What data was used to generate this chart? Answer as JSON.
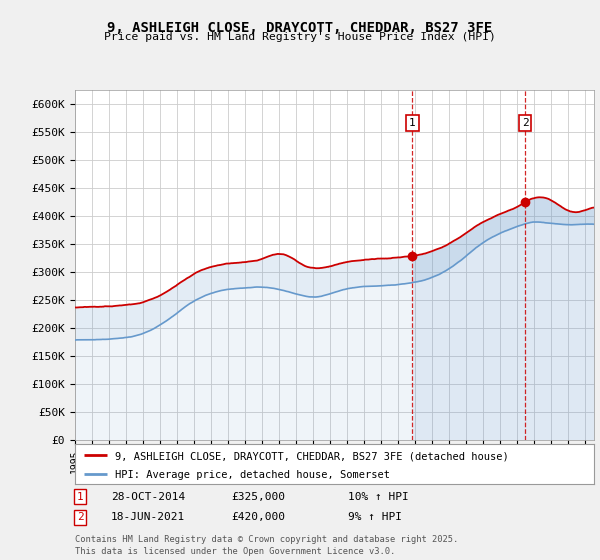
{
  "title": "9, ASHLEIGH CLOSE, DRAYCOTT, CHEDDAR, BS27 3FE",
  "subtitle": "Price paid vs. HM Land Registry's House Price Index (HPI)",
  "ylabel_ticks": [
    "£0",
    "£50K",
    "£100K",
    "£150K",
    "£200K",
    "£250K",
    "£300K",
    "£350K",
    "£400K",
    "£450K",
    "£500K",
    "£550K",
    "£600K"
  ],
  "ytick_values": [
    0,
    50000,
    100000,
    150000,
    200000,
    250000,
    300000,
    350000,
    400000,
    450000,
    500000,
    550000,
    600000
  ],
  "ylim": [
    0,
    625000
  ],
  "background_color": "#f0f0f0",
  "plot_bg_color": "#ffffff",
  "grid_color": "#cccccc",
  "red_line_color": "#cc0000",
  "blue_line_color": "#6699cc",
  "vline_color": "#cc0000",
  "marker1_year": 2014.83,
  "marker2_year": 2021.46,
  "sale1_price": 325000,
  "sale1_date": "28-OCT-2014",
  "sale1_hpi": "10% ↑ HPI",
  "sale2_price": 420000,
  "sale2_date": "18-JUN-2021",
  "sale2_hpi": "9% ↑ HPI",
  "legend_label1": "9, ASHLEIGH CLOSE, DRAYCOTT, CHEDDAR, BS27 3FE (detached house)",
  "legend_label2": "HPI: Average price, detached house, Somerset",
  "footnote": "Contains HM Land Registry data © Crown copyright and database right 2025.\nThis data is licensed under the Open Government Licence v3.0.",
  "xmin": 1995,
  "xmax": 2025.5,
  "shade_start_year": 2014.83
}
